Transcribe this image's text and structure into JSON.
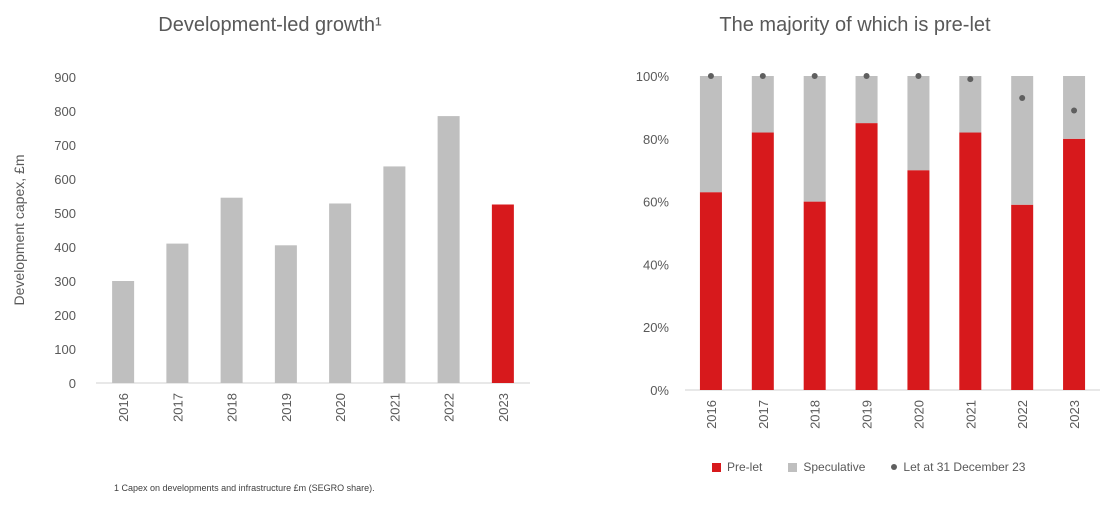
{
  "chart_data": [
    {
      "type": "bar",
      "title": "Development-led growth¹",
      "xlabel": "",
      "ylabel": "Development capex, £m",
      "ylim": [
        0,
        900
      ],
      "yticks": [
        "0",
        "100",
        "200",
        "300",
        "400",
        "500",
        "600",
        "700",
        "800",
        "900"
      ],
      "categories": [
        "2016",
        "2017",
        "2018",
        "2019",
        "2020",
        "2021",
        "2022",
        "2023"
      ],
      "values": [
        300,
        410,
        545,
        405,
        528,
        637,
        785,
        525
      ],
      "colors": [
        "#bfbfbf",
        "#bfbfbf",
        "#bfbfbf",
        "#bfbfbf",
        "#bfbfbf",
        "#bfbfbf",
        "#bfbfbf",
        "#d7191c"
      ],
      "grid": false
    },
    {
      "type": "bar",
      "stacked": true,
      "title": "The majority of which is pre-let",
      "xlabel": "",
      "ylabel": "",
      "ylim": [
        0,
        100
      ],
      "yticks": [
        "0%",
        "20%",
        "40%",
        "60%",
        "80%",
        "100%"
      ],
      "categories": [
        "2016",
        "2017",
        "2018",
        "2019",
        "2020",
        "2021",
        "2022",
        "2023"
      ],
      "series": [
        {
          "name": "Pre-let",
          "color": "#d7191c",
          "values": [
            63,
            82,
            60,
            85,
            70,
            82,
            59,
            80
          ]
        },
        {
          "name": "Speculative",
          "color": "#bfbfbf",
          "values": [
            37,
            18,
            40,
            15,
            30,
            18,
            41,
            20
          ]
        }
      ],
      "points": {
        "name": "Let at 31 December 23",
        "color": "#5f5f5f",
        "values": [
          100,
          100,
          100,
          100,
          100,
          99,
          93,
          89
        ]
      },
      "legend": "bottom",
      "grid": false
    }
  ],
  "footnote": "1 Capex on developments and infrastructure £m (SEGRO share)."
}
